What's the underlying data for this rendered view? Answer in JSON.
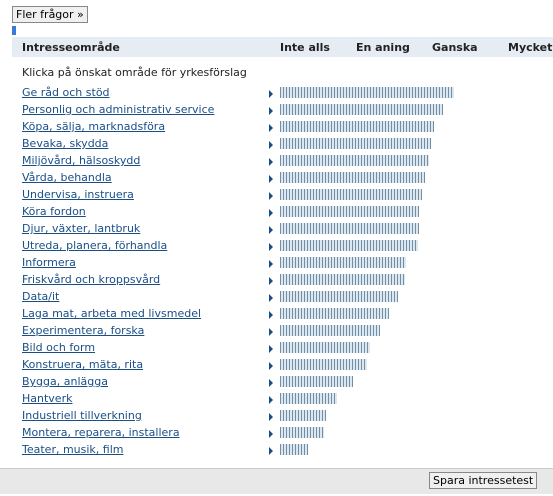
{
  "chart_data": {
    "type": "bar",
    "orientation": "horizontal",
    "button_top": "Fler frågor »",
    "header_label": "Intresseområde",
    "instruction": "Klicka på önskat område för yrkesförslag",
    "xlim": [
      0,
      3.6
    ],
    "xticks": [
      {
        "value": 0,
        "label": "Inte alls"
      },
      {
        "value": 1,
        "label": "En aning"
      },
      {
        "value": 2,
        "label": "Ganska"
      },
      {
        "value": 3,
        "label": "Mycket"
      }
    ],
    "categories": [
      "Ge råd och stöd",
      "Personlig och administrativ service",
      "Köpa, sälja, marknadsföra",
      "Bevaka, skydda",
      "Miljövård, hälsoskydd",
      "Vårda, behandla",
      "Undervisa, instruera",
      "Köra fordon",
      "Djur, växter, lantbruk",
      "Utreda, planera, förhandla",
      "Informera",
      "Friskvård och kroppsvård",
      "Data/it",
      "Laga mat, arbeta med livsmedel",
      "Experimentera, forska",
      "Bild och form",
      "Konstruera, mäta, rita",
      "Bygga, anlägga",
      "Hantverk",
      "Industriell tillverkning",
      "Montera, reparera, installera",
      "Teater, musik, film"
    ],
    "values": [
      2.29,
      2.14,
      2.03,
      1.99,
      1.96,
      1.91,
      1.87,
      1.83,
      1.83,
      1.82,
      1.66,
      1.64,
      1.55,
      1.43,
      1.32,
      1.18,
      1.14,
      0.96,
      0.75,
      0.61,
      0.58,
      0.37
    ],
    "color": "#6f8fa8",
    "button_bottom": "Spara intressetest"
  }
}
